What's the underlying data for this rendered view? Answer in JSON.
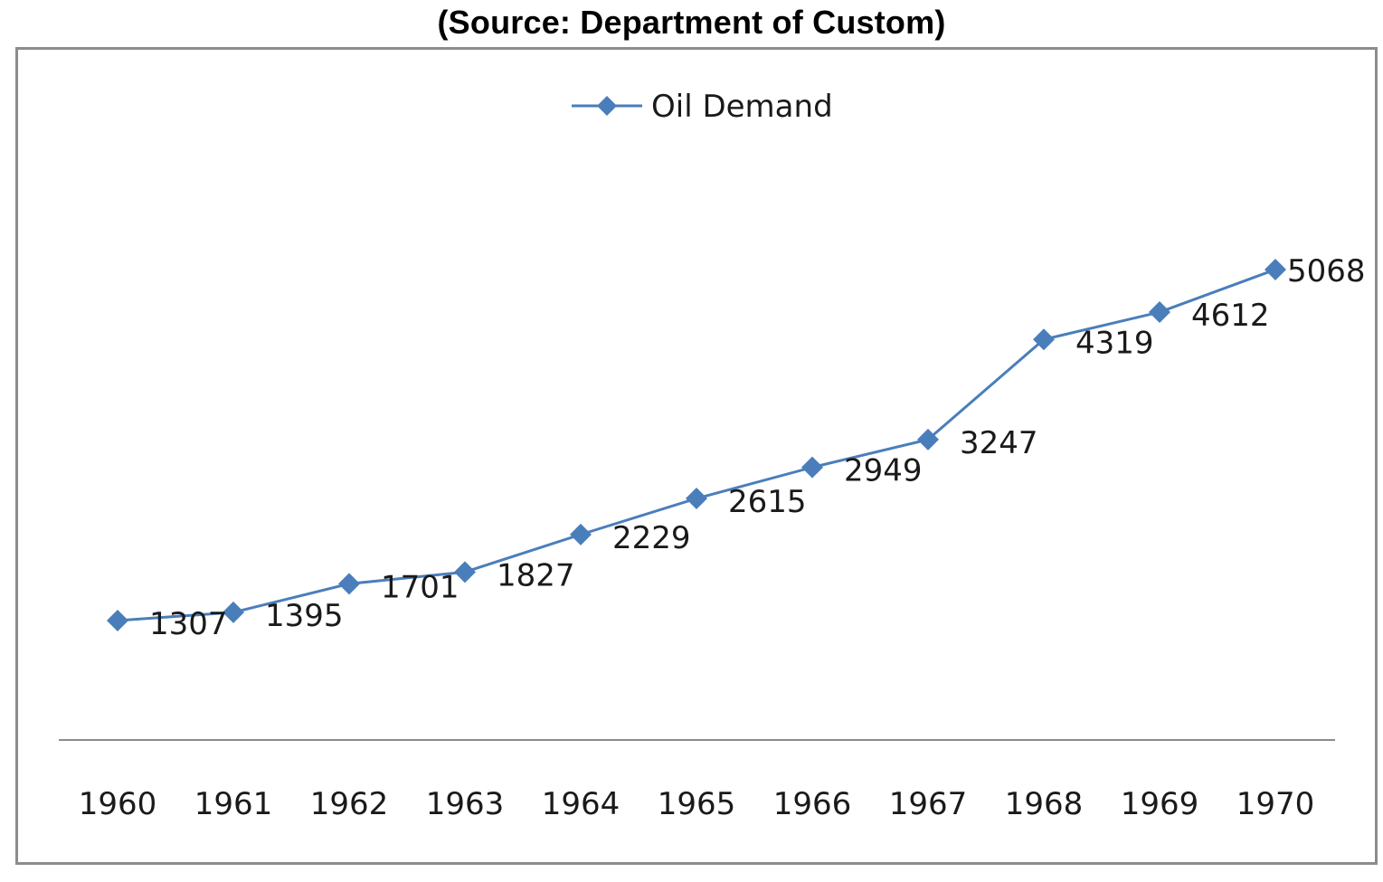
{
  "caption": "(Source: Department of Custom)",
  "chart_data": {
    "type": "line",
    "categories": [
      "1960",
      "1961",
      "1962",
      "1963",
      "1964",
      "1965",
      "1966",
      "1967",
      "1968",
      "1969",
      "1970"
    ],
    "series": [
      {
        "name": "Oil Demand",
        "values": [
          1307,
          1395,
          1701,
          1827,
          2229,
          2615,
          2949,
          3247,
          4319,
          4612,
          5068
        ],
        "color": "#4a7ebb",
        "marker": "diamond"
      }
    ],
    "data_labels": [
      "1307",
      "1395",
      "1701",
      "1827",
      "2229",
      "2615",
      "2949",
      "3247",
      "4319",
      "4612",
      "5068"
    ],
    "legend_position": "top-center",
    "grid": false,
    "y_axis_visible": false
  }
}
